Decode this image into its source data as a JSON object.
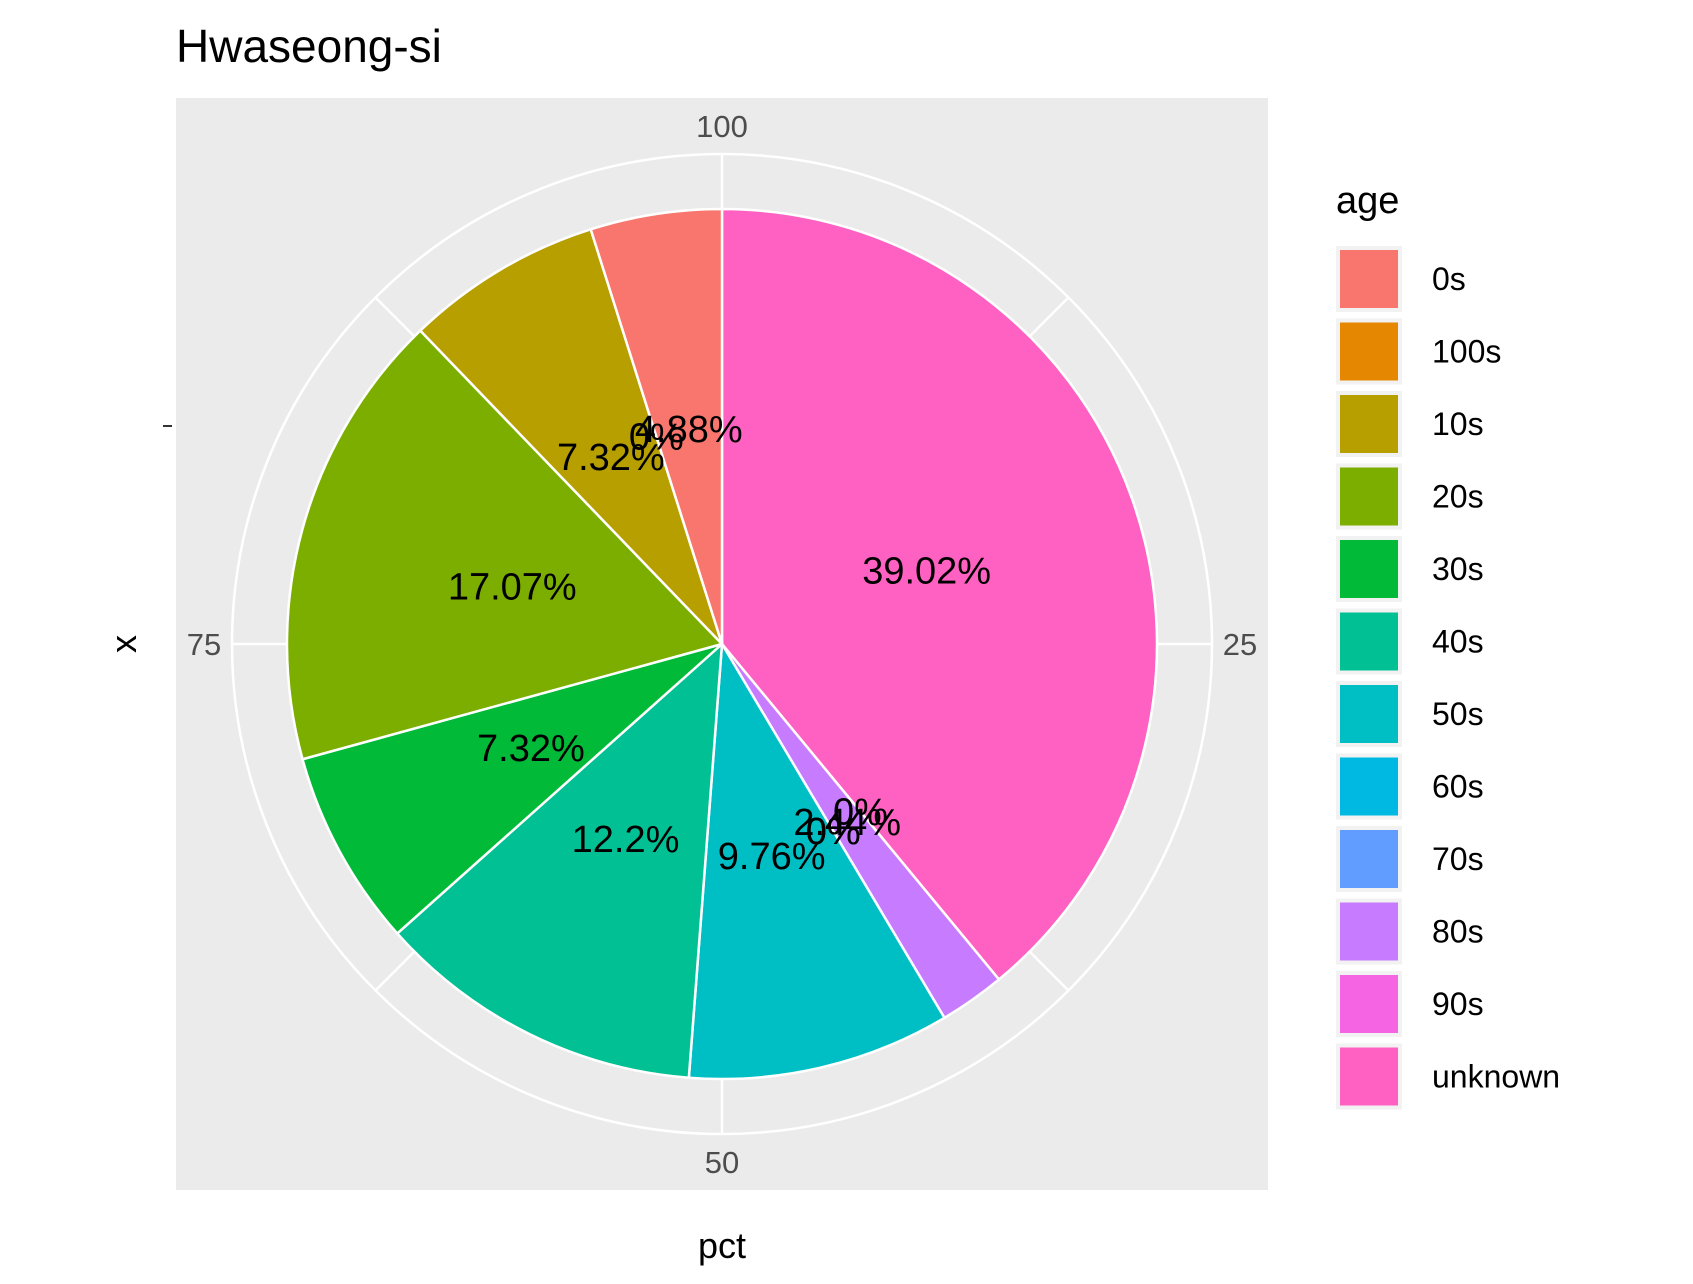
{
  "chart_data": {
    "type": "pie",
    "title": "Hwaseong-si",
    "xlabel": "pct",
    "ylabel": "x",
    "theta_ticks": [
      "100",
      "25",
      "50",
      "75"
    ],
    "theta_tick_values": [
      0,
      25,
      50,
      75
    ],
    "legend": {
      "title": "age",
      "position": "right"
    },
    "direction": "clockwise",
    "slices": [
      {
        "label": "unknown",
        "value": 39.02,
        "text": "39.02%",
        "color": "#FF61C3"
      },
      {
        "label": "90s",
        "value": 0,
        "text": "0%",
        "color": "#F564E3"
      },
      {
        "label": "80s",
        "value": 2.44,
        "text": "2.44%",
        "color": "#C77CFF"
      },
      {
        "label": "70s",
        "value": 0,
        "text": "0%",
        "color": "#619CFF"
      },
      {
        "label": "60s",
        "value": 0,
        "text": "0%",
        "color": "#00B9E3"
      },
      {
        "label": "50s",
        "value": 9.76,
        "text": "9.76%",
        "color": "#00BFC4"
      },
      {
        "label": "40s",
        "value": 12.2,
        "text": "12.2%",
        "color": "#00C094"
      },
      {
        "label": "30s",
        "value": 7.32,
        "text": "7.32%",
        "color": "#00BA38"
      },
      {
        "label": "20s",
        "value": 17.07,
        "text": "17.07%",
        "color": "#7CAE00"
      },
      {
        "label": "10s",
        "value": 7.32,
        "text": "7.32%",
        "color": "#B79F00"
      },
      {
        "label": "100s",
        "value": 0,
        "text": "0%",
        "color": "#E58700"
      },
      {
        "label": "0s",
        "value": 4.88,
        "text": "4.88%",
        "color": "#F8766D"
      }
    ],
    "legend_order": [
      "0s",
      "100s",
      "10s",
      "20s",
      "30s",
      "40s",
      "50s",
      "60s",
      "70s",
      "80s",
      "90s",
      "unknown"
    ],
    "panel_background": "#EBEBEB",
    "grid_color": "#FFFFFF",
    "grid": true
  }
}
